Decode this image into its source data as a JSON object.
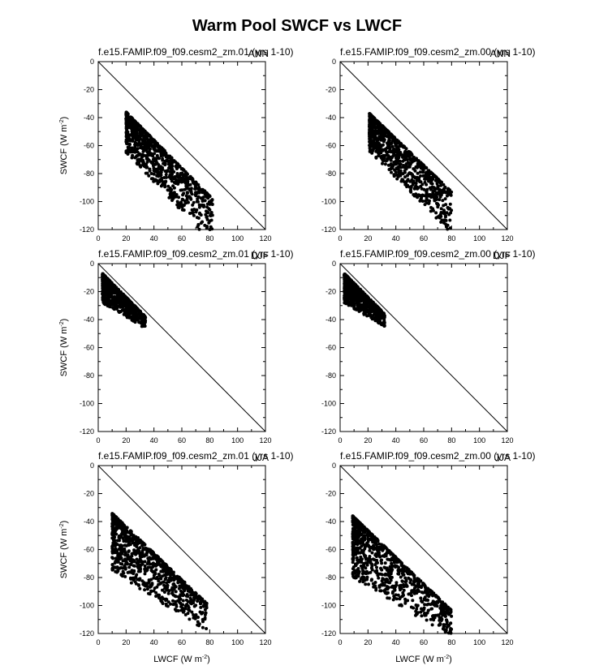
{
  "figure": {
    "title": "Warm Pool SWCF vs LWCF"
  },
  "chart_data": [
    {
      "type": "scatter",
      "title": "f.e15.FAMIP.f09_f09.cesm2_zm.01 (yrs 1-10)",
      "season": "ANN",
      "xlabel": "",
      "ylabel": "SWCF (W m",
      "ylabel_sup": "-2",
      "ylabel_end": ")",
      "xlim": [
        0,
        120
      ],
      "ylim": [
        -120,
        0
      ],
      "xticks": [
        0,
        20,
        40,
        60,
        80,
        100,
        120
      ],
      "yticks": [
        0,
        -20,
        -40,
        -60,
        -80,
        -100,
        -120
      ],
      "reference_line": "y = -x",
      "cloud": {
        "x_start": 20,
        "x_end": 82,
        "y_top_start": -36,
        "y_top_slope": -1.0,
        "y_bottom_start": -65,
        "y_bottom_slope": -1.05,
        "n": 900,
        "seed": 11
      }
    },
    {
      "type": "scatter",
      "title": "f.e15.FAMIP.f09_f09.cesm2_zm.00 (yrs 1-10)",
      "season": "ANN",
      "xlabel": "",
      "ylabel": "",
      "ylabel_sup": "",
      "ylabel_end": "",
      "xlim": [
        0,
        120
      ],
      "ylim": [
        -120,
        0
      ],
      "xticks": [
        0,
        20,
        40,
        60,
        80,
        100,
        120
      ],
      "yticks": [
        0,
        -20,
        -40,
        -60,
        -80,
        -100,
        -120
      ],
      "reference_line": "y = -x",
      "cloud": {
        "x_start": 21,
        "x_end": 80,
        "y_top_start": -37,
        "y_top_slope": -0.95,
        "y_bottom_start": -64,
        "y_bottom_slope": -1.0,
        "n": 900,
        "seed": 23
      }
    },
    {
      "type": "scatter",
      "title": "f.e15.FAMIP.f09_f09.cesm2_zm.01 (yrs 1-10)",
      "season": "DJF",
      "xlabel": "",
      "ylabel": "SWCF (W m",
      "ylabel_sup": "-2",
      "ylabel_end": ")",
      "xlim": [
        0,
        120
      ],
      "ylim": [
        -120,
        0
      ],
      "xticks": [
        0,
        20,
        40,
        60,
        80,
        100,
        120
      ],
      "yticks": [
        0,
        -20,
        -40,
        -60,
        -80,
        -100,
        -120
      ],
      "reference_line": "y = -x",
      "cloud": {
        "x_start": 3,
        "x_end": 34,
        "y_top_start": -7,
        "y_top_slope": -1.0,
        "y_bottom_start": -28,
        "y_bottom_slope": -0.6,
        "n": 700,
        "seed": 37
      }
    },
    {
      "type": "scatter",
      "title": "f.e15.FAMIP.f09_f09.cesm2_zm.00 (yrs 1-10)",
      "season": "DJF",
      "xlabel": "",
      "ylabel": "",
      "ylabel_sup": "",
      "ylabel_end": "",
      "xlim": [
        0,
        120
      ],
      "ylim": [
        -120,
        0
      ],
      "xticks": [
        0,
        20,
        40,
        60,
        80,
        100,
        120
      ],
      "yticks": [
        0,
        -20,
        -40,
        -60,
        -80,
        -100,
        -120
      ],
      "reference_line": "y = -x",
      "cloud": {
        "x_start": 3,
        "x_end": 32,
        "y_top_start": -7,
        "y_top_slope": -1.0,
        "y_bottom_start": -28,
        "y_bottom_slope": -0.6,
        "n": 700,
        "seed": 41
      }
    },
    {
      "type": "scatter",
      "title": "f.e15.FAMIP.f09_f09.cesm2_zm.01 (yrs 1-10)",
      "season": "JJA",
      "xlabel": "LWCF (W m",
      "xlabel_sup": "-2",
      "xlabel_end": ")",
      "ylabel": "SWCF (W m",
      "ylabel_sup": "-2",
      "ylabel_end": ")",
      "xlim": [
        0,
        120
      ],
      "ylim": [
        -120,
        0
      ],
      "xticks": [
        0,
        20,
        40,
        60,
        80,
        100,
        120
      ],
      "yticks": [
        0,
        -20,
        -40,
        -60,
        -80,
        -100,
        -120
      ],
      "reference_line": "y = -x",
      "cloud": {
        "x_start": 10,
        "x_end": 78,
        "y_top_start": -34,
        "y_top_slope": -0.95,
        "y_bottom_start": -75,
        "y_bottom_slope": -0.65,
        "n": 900,
        "seed": 53
      }
    },
    {
      "type": "scatter",
      "title": "f.e15.FAMIP.f09_f09.cesm2_zm.00 (yrs 1-10)",
      "season": "JJA",
      "xlabel": "LWCF (W m",
      "xlabel_sup": "-2",
      "xlabel_end": ")",
      "ylabel": "",
      "ylabel_sup": "",
      "ylabel_end": "",
      "xlim": [
        0,
        120
      ],
      "ylim": [
        -120,
        0
      ],
      "xticks": [
        0,
        20,
        40,
        60,
        80,
        100,
        120
      ],
      "yticks": [
        0,
        -20,
        -40,
        -60,
        -80,
        -100,
        -120
      ],
      "reference_line": "y = -x",
      "cloud": {
        "x_start": 9,
        "x_end": 80,
        "y_top_start": -36,
        "y_top_slope": -0.95,
        "y_bottom_start": -80,
        "y_bottom_slope": -0.6,
        "n": 900,
        "seed": 67
      }
    }
  ]
}
